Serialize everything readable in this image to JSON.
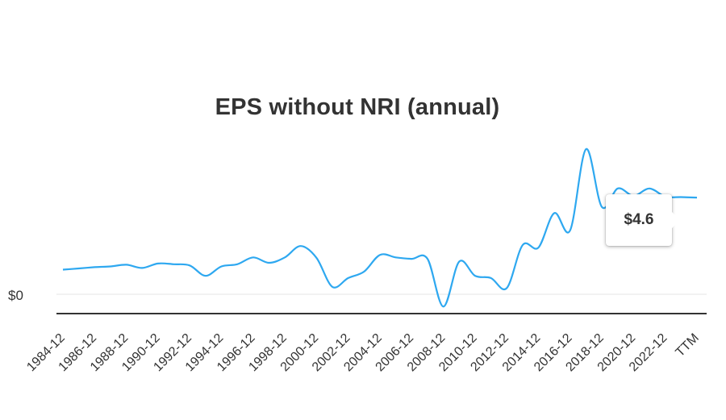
{
  "chart_data": {
    "type": "line",
    "title": "EPS without NRI (annual)",
    "xlabel": "",
    "ylabel": "",
    "x": [
      "1984-12",
      "1985-12",
      "1986-12",
      "1987-12",
      "1988-12",
      "1989-12",
      "1990-12",
      "1991-12",
      "1992-12",
      "1993-12",
      "1994-12",
      "1995-12",
      "1996-12",
      "1997-12",
      "1998-12",
      "1999-12",
      "2000-12",
      "2001-12",
      "2002-12",
      "2003-12",
      "2004-12",
      "2005-12",
      "2006-12",
      "2007-12",
      "2008-12",
      "2009-12",
      "2010-12",
      "2011-12",
      "2012-12",
      "2013-12",
      "2014-12",
      "2015-12",
      "2016-12",
      "2017-12",
      "2018-12",
      "2019-12",
      "2020-12",
      "2021-12",
      "2022-12",
      "2023-12",
      "TTM"
    ],
    "x_tick_labels": [
      "1984-12",
      "1986-12",
      "1988-12",
      "1990-12",
      "1992-12",
      "1994-12",
      "1996-12",
      "1998-12",
      "2000-12",
      "2002-12",
      "2004-12",
      "2006-12",
      "2008-12",
      "2010-12",
      "2012-12",
      "2014-12",
      "2016-12",
      "2018-12",
      "2020-12",
      "2022-12",
      "TTM"
    ],
    "series": [
      {
        "color": "#2ea8f0",
        "values": [
          1.0,
          1.05,
          1.1,
          1.13,
          1.2,
          1.07,
          1.25,
          1.22,
          1.17,
          0.75,
          1.13,
          1.22,
          1.5,
          1.28,
          1.5,
          1.96,
          1.48,
          0.3,
          0.66,
          0.92,
          1.6,
          1.5,
          1.44,
          1.44,
          -0.5,
          1.33,
          0.75,
          0.66,
          0.25,
          2.0,
          1.9,
          3.3,
          2.6,
          5.9,
          3.55,
          4.3,
          4.0,
          4.3,
          3.97,
          3.95,
          3.93
        ]
      }
    ],
    "y_tick_labels": [
      "$0"
    ],
    "ylim": [
      -1.0,
      6.0
    ],
    "grid": true,
    "legend": "none",
    "tooltip": {
      "label": "$4.6"
    },
    "colors": {
      "line": "#2ea8f0",
      "axis": "#333333",
      "zero_line": "#e6e6e6",
      "text": "#333333"
    }
  }
}
